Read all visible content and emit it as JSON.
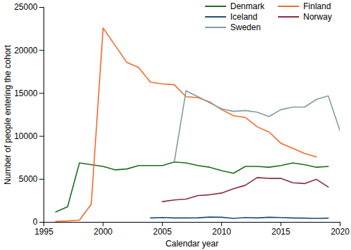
{
  "chart_data": {
    "type": "line",
    "x_label": "Calendar year",
    "y_label": "Number of people entering the cohort",
    "x": [
      1996,
      1997,
      1998,
      1999,
      2000,
      2001,
      2002,
      2003,
      2004,
      2005,
      2006,
      2007,
      2008,
      2009,
      2010,
      2011,
      2012,
      2013,
      2014,
      2015,
      2016,
      2017,
      2018,
      2019,
      2020
    ],
    "series": [
      {
        "name": "Denmark",
        "color": "#1a6e1a",
        "values": [
          1200,
          1800,
          6900,
          6700,
          6500,
          6100,
          6200,
          6600,
          6600,
          6600,
          7000,
          6900,
          6600,
          6400,
          6000,
          5700,
          6500,
          6500,
          6400,
          6600,
          6900,
          6700,
          6400,
          6500,
          null
        ]
      },
      {
        "name": "Finland",
        "color": "#f26b2a",
        "values": [
          100,
          150,
          250,
          2100,
          22600,
          20600,
          18600,
          18000,
          16300,
          16100,
          16000,
          14600,
          14500,
          14000,
          13100,
          12400,
          12200,
          11100,
          10500,
          9200,
          8600,
          8000,
          7600,
          null,
          null
        ]
      },
      {
        "name": "Iceland",
        "color": "#1f4e7a",
        "values": [
          null,
          null,
          null,
          null,
          null,
          null,
          null,
          null,
          500,
          550,
          500,
          500,
          520,
          600,
          580,
          450,
          550,
          500,
          580,
          550,
          500,
          480,
          450,
          480,
          null
        ]
      },
      {
        "name": "Norway",
        "color": "#8c2a3c",
        "values": [
          null,
          null,
          null,
          null,
          null,
          null,
          null,
          null,
          null,
          2400,
          2600,
          2700,
          3100,
          3200,
          3400,
          3900,
          4300,
          5200,
          5100,
          5100,
          4600,
          4500,
          5000,
          4100,
          null
        ]
      },
      {
        "name": "Sweden",
        "color": "#7f9e98",
        "values": [
          null,
          null,
          null,
          null,
          null,
          null,
          null,
          null,
          null,
          null,
          7000,
          15300,
          14600,
          13900,
          13200,
          12900,
          13000,
          12800,
          12300,
          13100,
          13400,
          13400,
          14300,
          14700,
          10600
        ]
      }
    ],
    "xlim": [
      1995,
      2020
    ],
    "xticks": [
      1995,
      2000,
      2005,
      2010,
      2015,
      2020
    ],
    "ylim": [
      0,
      25000
    ],
    "yticks": [
      0,
      5000,
      10000,
      15000,
      20000,
      25000
    ],
    "grid": false,
    "legend": "top-right"
  }
}
